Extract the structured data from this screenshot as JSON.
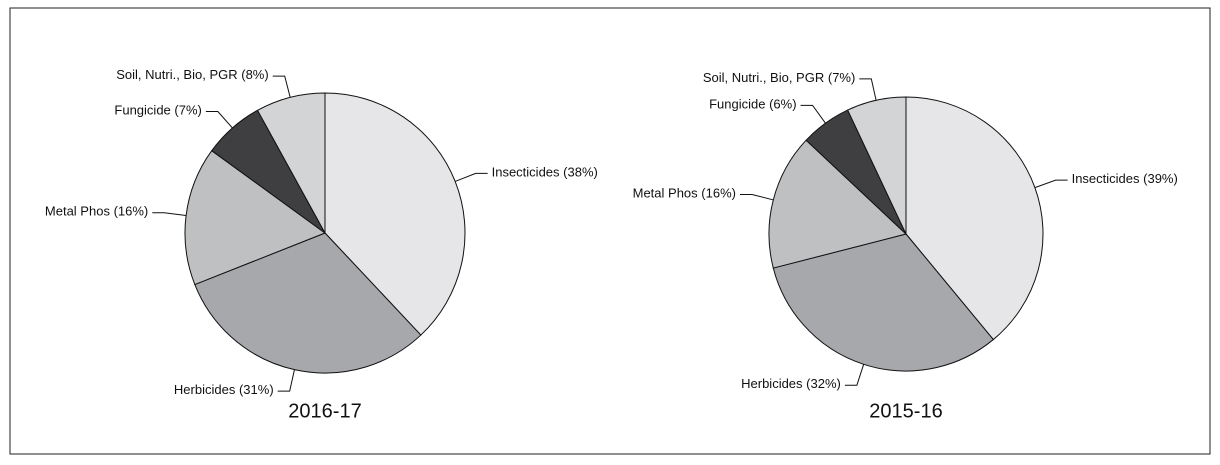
{
  "chart_data": [
    {
      "type": "pie",
      "title": "2016-17",
      "categories": [
        "Insecticides",
        "Herbicides",
        "Metal Phos",
        "Fungicide",
        "Soil, Nutri., Bio, PGR"
      ],
      "values": [
        38,
        31,
        16,
        7,
        8
      ],
      "value_labels": [
        "(38%)",
        "(31%)",
        "(16%)",
        "(7%)",
        "(8%)"
      ],
      "colors": [
        "#e6e6e8",
        "#a7a8ab",
        "#bfc0c2",
        "#3f3f41",
        "#d3d4d6"
      ]
    },
    {
      "type": "pie",
      "title": "2015-16",
      "categories": [
        "Insecticides",
        "Herbicides",
        "Metal Phos",
        "Fungicide",
        "Soil, Nutri., Bio, PGR"
      ],
      "values": [
        39,
        32,
        16,
        6,
        7
      ],
      "value_labels": [
        "(39%)",
        "(32%)",
        "(16%)",
        "(6%)",
        "(7%)"
      ],
      "colors": [
        "#e6e6e8",
        "#a7a8ab",
        "#bfc0c2",
        "#3f3f41",
        "#d3d4d6"
      ]
    }
  ]
}
